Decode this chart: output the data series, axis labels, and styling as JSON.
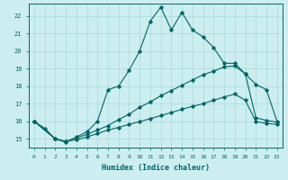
{
  "xlabel": "Humidex (Indice chaleur)",
  "bg_color": "#cdeef0",
  "line_color": "#006666",
  "grid_color": "#a8d8d8",
  "xlim": [
    -0.5,
    23.5
  ],
  "ylim": [
    14.5,
    22.7
  ],
  "yticks": [
    15,
    16,
    17,
    18,
    19,
    20,
    21,
    22
  ],
  "xticks": [
    0,
    1,
    2,
    3,
    4,
    5,
    6,
    7,
    8,
    9,
    10,
    11,
    12,
    13,
    14,
    15,
    16,
    17,
    18,
    19,
    20,
    21,
    22,
    23
  ],
  "series1_x": [
    0,
    1,
    2,
    3,
    4,
    5,
    6,
    7,
    8,
    9,
    10,
    11,
    12,
    13,
    14,
    15,
    16,
    17,
    18,
    19,
    20,
    21,
    22,
    23
  ],
  "series1_y": [
    16.0,
    15.6,
    15.0,
    14.8,
    15.1,
    15.4,
    16.0,
    17.8,
    18.0,
    18.9,
    20.0,
    21.7,
    22.5,
    21.2,
    22.2,
    21.2,
    20.8,
    20.2,
    19.3,
    19.3,
    18.7,
    18.1,
    17.8,
    16.0
  ],
  "series2_x": [
    0,
    2,
    3,
    4,
    5,
    6,
    7,
    8,
    9,
    10,
    11,
    12,
    13,
    14,
    15,
    16,
    17,
    18,
    19,
    20,
    21,
    22,
    23
  ],
  "series2_y": [
    16.0,
    15.0,
    14.85,
    15.05,
    15.25,
    15.5,
    15.75,
    16.1,
    16.4,
    16.8,
    17.1,
    17.45,
    17.75,
    18.05,
    18.35,
    18.65,
    18.85,
    19.1,
    19.15,
    18.7,
    16.2,
    16.05,
    15.95
  ],
  "series3_x": [
    0,
    2,
    3,
    4,
    5,
    6,
    7,
    8,
    9,
    10,
    11,
    12,
    13,
    14,
    15,
    16,
    17,
    18,
    19,
    20,
    21,
    22,
    23
  ],
  "series3_y": [
    16.0,
    15.0,
    14.85,
    14.95,
    15.1,
    15.3,
    15.5,
    15.65,
    15.82,
    15.98,
    16.15,
    16.32,
    16.5,
    16.68,
    16.85,
    17.0,
    17.2,
    17.38,
    17.55,
    17.2,
    15.98,
    15.88,
    15.82
  ]
}
